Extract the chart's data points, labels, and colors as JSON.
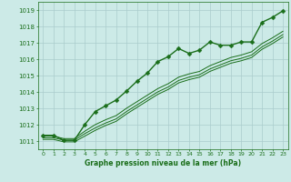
{
  "background_color": "#cceae7",
  "grid_color": "#aacccc",
  "line_color": "#1a6e1a",
  "xlabel": "Graphe pression niveau de la mer (hPa)",
  "ylim": [
    1010.5,
    1019.5
  ],
  "xlim": [
    -0.5,
    23.5
  ],
  "yticks": [
    1011,
    1012,
    1013,
    1014,
    1015,
    1016,
    1017,
    1018,
    1019
  ],
  "xticks": [
    0,
    1,
    2,
    3,
    4,
    5,
    6,
    7,
    8,
    9,
    10,
    11,
    12,
    13,
    14,
    15,
    16,
    17,
    18,
    19,
    20,
    21,
    22,
    23
  ],
  "series": [
    {
      "x": [
        0,
        1,
        2,
        3,
        4,
        5,
        6,
        7,
        8,
        9,
        10,
        11,
        12,
        13,
        14,
        15,
        16,
        17,
        18,
        19,
        20,
        21,
        22,
        23
      ],
      "y": [
        1011.35,
        1011.35,
        1011.05,
        1011.05,
        1012.0,
        1012.8,
        1013.15,
        1013.5,
        1014.05,
        1014.65,
        1015.15,
        1015.85,
        1016.15,
        1016.65,
        1016.35,
        1016.55,
        1017.05,
        1016.85,
        1016.85,
        1017.05,
        1017.05,
        1018.25,
        1018.55,
        1018.95
      ],
      "marker": "D",
      "markersize": 2.5,
      "linewidth": 1.0
    },
    {
      "x": [
        0,
        1,
        2,
        3,
        4,
        5,
        6,
        7,
        8,
        9,
        10,
        11,
        12,
        13,
        14,
        15,
        16,
        17,
        18,
        19,
        20,
        21,
        22,
        23
      ],
      "y": [
        1011.1,
        1011.1,
        1010.95,
        1010.95,
        1011.3,
        1011.65,
        1011.95,
        1012.2,
        1012.65,
        1013.05,
        1013.45,
        1013.85,
        1014.15,
        1014.55,
        1014.75,
        1014.9,
        1015.25,
        1015.5,
        1015.75,
        1015.9,
        1016.1,
        1016.6,
        1016.95,
        1017.35
      ],
      "marker": null,
      "markersize": 0,
      "linewidth": 0.7
    },
    {
      "x": [
        0,
        1,
        2,
        3,
        4,
        5,
        6,
        7,
        8,
        9,
        10,
        11,
        12,
        13,
        14,
        15,
        16,
        17,
        18,
        19,
        20,
        21,
        22,
        23
      ],
      "y": [
        1011.2,
        1011.2,
        1011.05,
        1011.05,
        1011.45,
        1011.8,
        1012.1,
        1012.35,
        1012.8,
        1013.2,
        1013.6,
        1014.0,
        1014.3,
        1014.7,
        1014.9,
        1015.05,
        1015.4,
        1015.65,
        1015.9,
        1016.05,
        1016.25,
        1016.75,
        1017.1,
        1017.5
      ],
      "marker": null,
      "markersize": 0,
      "linewidth": 0.7
    },
    {
      "x": [
        0,
        1,
        2,
        3,
        4,
        5,
        6,
        7,
        8,
        9,
        10,
        11,
        12,
        13,
        14,
        15,
        16,
        17,
        18,
        19,
        20,
        21,
        22,
        23
      ],
      "y": [
        1011.3,
        1011.3,
        1011.15,
        1011.15,
        1011.6,
        1012.0,
        1012.3,
        1012.55,
        1013.0,
        1013.4,
        1013.8,
        1014.2,
        1014.5,
        1014.9,
        1015.1,
        1015.25,
        1015.6,
        1015.85,
        1016.1,
        1016.25,
        1016.45,
        1016.95,
        1017.3,
        1017.7
      ],
      "marker": null,
      "markersize": 0,
      "linewidth": 0.7
    }
  ]
}
